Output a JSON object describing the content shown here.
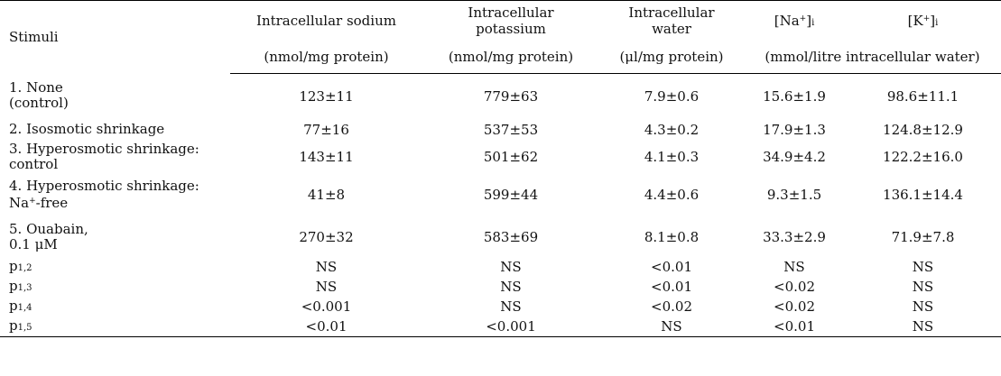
{
  "header": {
    "stimuli": "Stimuli",
    "col1_title": "Intracellular sodium",
    "col2_title_line1": "Intracellular",
    "col2_title_line2": "potassium",
    "col3_title_line1": "Intracellular",
    "col3_title_line2": "water",
    "col4_title_pre": "[Na",
    "col4_title_sup": "+",
    "col4_title_post": "]",
    "col4_title_sub": "i",
    "col5_title_pre": "[K",
    "col5_title_sup": "+",
    "col5_title_post": "]",
    "col5_title_sub": "i",
    "col1_unit": "(nmol/mg protein)",
    "col2_unit": "(nmol/mg protein)",
    "col3_unit": "(μl/mg protein)",
    "col45_unit": "(mmol/litre intracellular water)"
  },
  "rows": [
    {
      "label_line1": "1. None",
      "label_line2": "(control)",
      "na": "123±11",
      "k": "779±63",
      "water": "7.9±0.6",
      "na_i": "15.6±1.9",
      "k_i": "98.6±11.1"
    },
    {
      "label_line1": "2. Isosmotic  shrinkage",
      "label_line2": "",
      "na": "77±16",
      "k": "537±53",
      "water": "4.3±0.2",
      "na_i": "17.9±1.3",
      "k_i": "124.8±12.9"
    },
    {
      "label_line1": "3. Hyperosmotic  shrinkage:",
      "label_line2": "control",
      "na": "143±11",
      "k": "501±62",
      "water": "4.1±0.3",
      "na_i": "34.9±4.2",
      "k_i": "122.2±16.0"
    },
    {
      "label_line1": "4. Hyperosmotic  shrinkage:",
      "label_line2_pre": "Na",
      "label_line2_sup": "+",
      "label_line2_post": "-free",
      "na": "41±8",
      "k": "599±44",
      "water": "4.4±0.6",
      "na_i": "9.3±1.5",
      "k_i": "136.1±14.4"
    },
    {
      "label_line1": "5. Ouabain,",
      "label_line2": "0.1 μM",
      "na": "270±32",
      "k": "583±69",
      "water": "8.1±0.8",
      "na_i": "33.3±2.9",
      "k_i": "71.9±7.8"
    }
  ],
  "pvalues": [
    {
      "p": "p",
      "sub": "1,2",
      "na": "NS",
      "k": "NS",
      "water": "<0.01",
      "na_i": "NS",
      "k_i": "NS"
    },
    {
      "p": "p",
      "sub": "1,3",
      "na": "NS",
      "k": "NS",
      "water": "<0.01",
      "na_i": "<0.02",
      "k_i": "NS"
    },
    {
      "p": "p",
      "sub": "1,4",
      "na": "<0.001",
      "k": "NS",
      "water": "<0.02",
      "na_i": "<0.02",
      "k_i": "NS"
    },
    {
      "p": "p",
      "sub": "1,5",
      "na": "<0.01",
      "k": "<0.001",
      "water": "NS",
      "na_i": "<0.01",
      "k_i": "NS"
    }
  ]
}
